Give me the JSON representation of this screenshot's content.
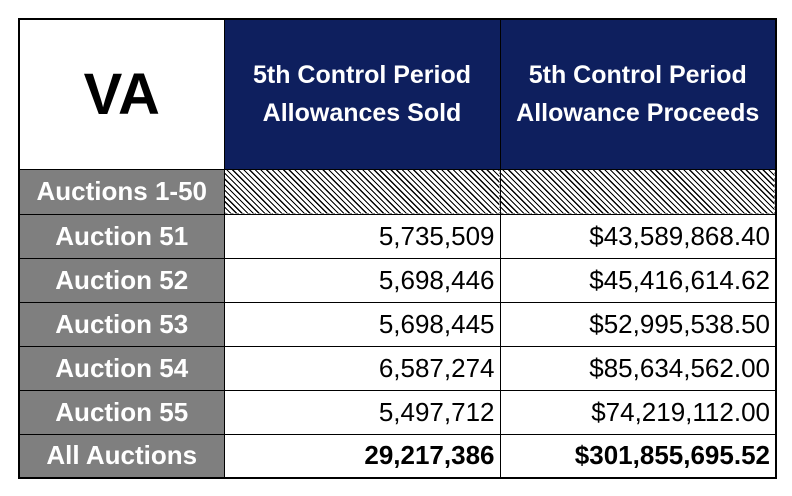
{
  "table": {
    "state": "VA",
    "columns": [
      "5th Control Period Allowances Sold",
      "5th Control Period Allowance Proceeds"
    ],
    "rows": [
      {
        "label": "Auctions 1-50",
        "sold": "",
        "proceeds": "",
        "hatched": true
      },
      {
        "label": "Auction 51",
        "sold": "5,735,509",
        "proceeds": "$43,589,868.40"
      },
      {
        "label": "Auction 52",
        "sold": "5,698,446",
        "proceeds": "$45,416,614.62"
      },
      {
        "label": "Auction 53",
        "sold": "5,698,445",
        "proceeds": "$52,995,538.50"
      },
      {
        "label": "Auction 54",
        "sold": "6,587,274",
        "proceeds": "$85,634,562.00"
      },
      {
        "label": "Auction 55",
        "sold": "5,497,712",
        "proceeds": "$74,219,112.00"
      }
    ],
    "total": {
      "label": "All Auctions",
      "sold": "29,217,386",
      "proceeds": "$301,855,695.52"
    }
  },
  "colors": {
    "header_bg": "#0e1f5e",
    "label_bg": "#7f7f7f"
  }
}
